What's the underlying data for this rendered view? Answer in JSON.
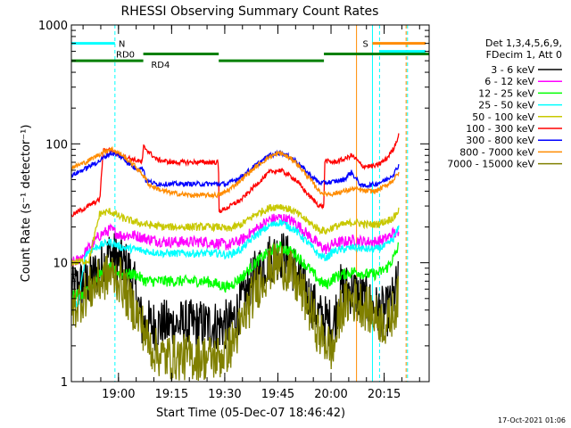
{
  "chart_data": {
    "type": "line",
    "title": "RHESSI Observing Summary Count Rates",
    "xlabel": "Start Time (05-Dec-07 18:46:42)",
    "ylabel": "Count Rate (s⁻¹ detector⁻¹)",
    "yscale": "log",
    "ylim": [
      1,
      1000
    ],
    "xlim_min": [
      0,
      101
    ],
    "y_ticks": [
      "1",
      "10",
      "100",
      "1000"
    ],
    "x_ticks": [
      {
        "label": "19:00",
        "min": 13.3
      },
      {
        "label": "19:15",
        "min": 28.3
      },
      {
        "label": "19:30",
        "min": 43.3
      },
      {
        "label": "19:45",
        "min": 58.3
      },
      {
        "label": "20:00",
        "min": 73.3
      },
      {
        "label": "20:15",
        "min": 88.3
      }
    ],
    "legend_header": [
      "Det 1,3,4,5,6,9,",
      "FDecim 1, Att 0"
    ],
    "footer_date": "17-Oct-2021 01:06",
    "annotations": {
      "N": {
        "label": "N",
        "start_min": 0,
        "end_min": 12.3,
        "y": 700,
        "color": "#00ffff"
      },
      "S": {
        "label": "S",
        "start_min": 85,
        "end_min": 100,
        "y": 700,
        "color": "#ff8c00"
      },
      "S_cyan": {
        "start_min": 87,
        "end_min": 100,
        "y": 600,
        "color": "#00ffff"
      },
      "RD0": {
        "label": "RD0",
        "segments": [
          [
            20.3,
            41.6
          ],
          [
            71.3,
            101
          ]
        ],
        "y": 570,
        "color": "#008000"
      },
      "RD4": {
        "label": "RD4",
        "segments": [
          [
            0,
            20.3
          ],
          [
            41.6,
            71.3
          ]
        ],
        "y": 500,
        "color": "#008000"
      }
    },
    "vlines": [
      {
        "min": 0,
        "color": "#00ffff",
        "dash": false
      },
      {
        "min": 12.3,
        "color": "#00ffff",
        "dash": true
      },
      {
        "min": 80.5,
        "color": "#ff8c00",
        "dash": false
      },
      {
        "min": 85,
        "color": "#00ffff",
        "dash": false
      },
      {
        "min": 87,
        "color": "#00ffff",
        "dash": true
      },
      {
        "min": 94.5,
        "color": "#ff8c00",
        "dash": true
      },
      {
        "min": 94.9,
        "color": "#00ffff",
        "dash": true
      }
    ],
    "series": [
      {
        "name": "3 - 6 keV",
        "color": "#000000",
        "noise": 0.55,
        "clip": 1.0,
        "points": [
          [
            0,
            6
          ],
          [
            5,
            7
          ],
          [
            8,
            9
          ],
          [
            11,
            12
          ],
          [
            14,
            10
          ],
          [
            16,
            9
          ],
          [
            18,
            6
          ],
          [
            20,
            3
          ],
          [
            24,
            3
          ],
          [
            28,
            3
          ],
          [
            34,
            3
          ],
          [
            38,
            3
          ],
          [
            42,
            3
          ],
          [
            45,
            3
          ],
          [
            48,
            4.5
          ],
          [
            52,
            8
          ],
          [
            56,
            11
          ],
          [
            59,
            12
          ],
          [
            62,
            10
          ],
          [
            66,
            6
          ],
          [
            70,
            3.5
          ],
          [
            74,
            3
          ],
          [
            76,
            6
          ],
          [
            79,
            6
          ],
          [
            82,
            5
          ],
          [
            86,
            4
          ],
          [
            89,
            3.8
          ],
          [
            91,
            5
          ],
          [
            92.3,
            7
          ]
        ]
      },
      {
        "name": "6 - 12 keV",
        "color": "#ff00ff",
        "noise": 0.12,
        "clip": 1.0,
        "points": [
          [
            0,
            10
          ],
          [
            2,
            10.5
          ],
          [
            8,
            17
          ],
          [
            11,
            19
          ],
          [
            14,
            17
          ],
          [
            18,
            17
          ],
          [
            21,
            16
          ],
          [
            26,
            15
          ],
          [
            32,
            15
          ],
          [
            38,
            15
          ],
          [
            42,
            14.5
          ],
          [
            44,
            14
          ],
          [
            48,
            15.5
          ],
          [
            52,
            19
          ],
          [
            56,
            23
          ],
          [
            59,
            24
          ],
          [
            63,
            22
          ],
          [
            67,
            17
          ],
          [
            70,
            14
          ],
          [
            72,
            13
          ],
          [
            74,
            14.5
          ],
          [
            77,
            15
          ],
          [
            80,
            15.5
          ],
          [
            83,
            15
          ],
          [
            86,
            15
          ],
          [
            89,
            16
          ],
          [
            91,
            18
          ],
          [
            92.5,
            17
          ]
        ]
      },
      {
        "name": "12 - 25 keV",
        "color": "#00ff00",
        "noise": 0.12,
        "clip": 1.0,
        "points": [
          [
            0,
            5.5
          ],
          [
            4,
            5.5
          ],
          [
            8,
            8
          ],
          [
            11,
            9
          ],
          [
            14,
            8
          ],
          [
            18,
            8
          ],
          [
            21,
            7
          ],
          [
            26,
            7
          ],
          [
            32,
            7
          ],
          [
            38,
            7
          ],
          [
            42,
            6.5
          ],
          [
            44,
            6.2
          ],
          [
            48,
            7.5
          ],
          [
            52,
            10
          ],
          [
            56,
            12.5
          ],
          [
            59,
            13.5
          ],
          [
            63,
            12
          ],
          [
            67,
            9
          ],
          [
            70,
            7
          ],
          [
            72,
            6.5
          ],
          [
            74,
            7.5
          ],
          [
            77,
            8
          ],
          [
            80,
            8.5
          ],
          [
            83,
            8
          ],
          [
            86,
            8
          ],
          [
            89,
            9
          ],
          [
            91,
            11
          ],
          [
            92.5,
            14
          ]
        ]
      },
      {
        "name": "25 - 50 keV",
        "color": "#00ffff",
        "noise": 0.08,
        "clip": 1.0,
        "points": [
          [
            0,
            4.5
          ],
          [
            2,
            4.5
          ],
          [
            4,
            12
          ],
          [
            8,
            14
          ],
          [
            11,
            15
          ],
          [
            14,
            13.5
          ],
          [
            18,
            13
          ],
          [
            21,
            12.5
          ],
          [
            26,
            12
          ],
          [
            32,
            12
          ],
          [
            38,
            12
          ],
          [
            42,
            12
          ],
          [
            44,
            11.5
          ],
          [
            48,
            13
          ],
          [
            52,
            17
          ],
          [
            56,
            20.5
          ],
          [
            59,
            22
          ],
          [
            63,
            19
          ],
          [
            67,
            14.5
          ],
          [
            70,
            11.5
          ],
          [
            72,
            11
          ],
          [
            74,
            12.5
          ],
          [
            77,
            13
          ],
          [
            80,
            13.5
          ],
          [
            83,
            13
          ],
          [
            86,
            13
          ],
          [
            89,
            14
          ],
          [
            91,
            16
          ],
          [
            92.5,
            20
          ]
        ]
      },
      {
        "name": "50 - 100 keV",
        "color": "#c8c800",
        "noise": 0.08,
        "clip": 1.0,
        "points": [
          [
            0,
            10
          ],
          [
            5,
            10.5
          ],
          [
            8,
            26
          ],
          [
            11,
            27
          ],
          [
            14,
            24
          ],
          [
            18,
            22
          ],
          [
            21,
            21
          ],
          [
            26,
            20
          ],
          [
            32,
            20
          ],
          [
            38,
            20
          ],
          [
            42,
            20
          ],
          [
            44,
            19
          ],
          [
            48,
            21
          ],
          [
            52,
            25.5
          ],
          [
            56,
            29
          ],
          [
            59,
            30
          ],
          [
            63,
            27
          ],
          [
            67,
            22
          ],
          [
            70,
            19
          ],
          [
            72,
            18.5
          ],
          [
            74,
            20
          ],
          [
            77,
            21
          ],
          [
            80,
            22
          ],
          [
            83,
            21
          ],
          [
            86,
            21
          ],
          [
            89,
            22.5
          ],
          [
            91,
            24
          ],
          [
            92.5,
            28
          ]
        ]
      },
      {
        "name": "100 - 300 keV",
        "color": "#ff0000",
        "noise": 0.05,
        "clip": 1.0,
        "points": [
          [
            0,
            25
          ],
          [
            4,
            29
          ],
          [
            8,
            34
          ],
          [
            9,
            88
          ],
          [
            11,
            89
          ],
          [
            14,
            80
          ],
          [
            18,
            73
          ],
          [
            20,
            70
          ],
          [
            20.4,
            95
          ],
          [
            24,
            74
          ],
          [
            28,
            70
          ],
          [
            34,
            70
          ],
          [
            38,
            70
          ],
          [
            41.5,
            70
          ],
          [
            41.7,
            27
          ],
          [
            44,
            29
          ],
          [
            48,
            34
          ],
          [
            52,
            45
          ],
          [
            56,
            58
          ],
          [
            59,
            60
          ],
          [
            63,
            51
          ],
          [
            67,
            37
          ],
          [
            70,
            30
          ],
          [
            71.3,
            30
          ],
          [
            71.5,
            72
          ],
          [
            74,
            70
          ],
          [
            77,
            74
          ],
          [
            79,
            80
          ],
          [
            80.5,
            74
          ],
          [
            82,
            65
          ],
          [
            86,
            65
          ],
          [
            89,
            75
          ],
          [
            91,
            92
          ],
          [
            92.5,
            120
          ]
        ]
      },
      {
        "name": "300 - 800 keV",
        "color": "#0000ff",
        "noise": 0.05,
        "clip": 1.0,
        "points": [
          [
            0,
            54
          ],
          [
            4,
            62
          ],
          [
            8,
            72
          ],
          [
            11,
            84
          ],
          [
            14,
            78
          ],
          [
            18,
            62
          ],
          [
            20.4,
            62
          ],
          [
            21,
            49
          ],
          [
            24,
            46
          ],
          [
            28,
            46
          ],
          [
            34,
            46
          ],
          [
            38,
            46
          ],
          [
            41.6,
            46
          ],
          [
            44,
            46
          ],
          [
            48,
            53
          ],
          [
            52,
            66
          ],
          [
            56,
            80
          ],
          [
            59,
            85
          ],
          [
            63,
            74
          ],
          [
            67,
            56
          ],
          [
            70,
            47
          ],
          [
            71.3,
            47
          ],
          [
            74,
            48
          ],
          [
            77,
            50
          ],
          [
            79,
            58
          ],
          [
            80.5,
            50
          ],
          [
            82,
            44
          ],
          [
            86,
            46
          ],
          [
            89,
            50
          ],
          [
            91,
            56
          ],
          [
            92.5,
            67
          ]
        ]
      },
      {
        "name": "800 - 7000 keV",
        "color": "#ff8c00",
        "noise": 0.05,
        "clip": 1.0,
        "points": [
          [
            0,
            63
          ],
          [
            4,
            70
          ],
          [
            8,
            82
          ],
          [
            11,
            91
          ],
          [
            14,
            82
          ],
          [
            18,
            65
          ],
          [
            20.4,
            54
          ],
          [
            22,
            45
          ],
          [
            26,
            40
          ],
          [
            30,
            38
          ],
          [
            34,
            37
          ],
          [
            38,
            37
          ],
          [
            41.6,
            37
          ],
          [
            44,
            40
          ],
          [
            48,
            50
          ],
          [
            52,
            64
          ],
          [
            56,
            78
          ],
          [
            59,
            84
          ],
          [
            63,
            72
          ],
          [
            67,
            52
          ],
          [
            70,
            40
          ],
          [
            71.3,
            38
          ],
          [
            74,
            38
          ],
          [
            77,
            40
          ],
          [
            80,
            42
          ],
          [
            83,
            40
          ],
          [
            86,
            40
          ],
          [
            89,
            45
          ],
          [
            91,
            50
          ],
          [
            92.5,
            58
          ]
        ]
      },
      {
        "name": "7000 - 15000 keV",
        "color": "#808000",
        "noise": 0.5,
        "clip": 1.0,
        "points": [
          [
            0,
            4
          ],
          [
            4,
            5.5
          ],
          [
            8,
            7
          ],
          [
            11,
            8
          ],
          [
            14,
            7
          ],
          [
            16,
            5
          ],
          [
            18,
            4
          ],
          [
            20,
            3
          ],
          [
            22,
            2
          ],
          [
            26,
            1.6
          ],
          [
            30,
            1.6
          ],
          [
            34,
            1.6
          ],
          [
            38,
            1.6
          ],
          [
            42,
            1.6
          ],
          [
            45,
            2
          ],
          [
            48,
            3
          ],
          [
            52,
            6
          ],
          [
            56,
            9
          ],
          [
            59,
            10
          ],
          [
            62,
            8
          ],
          [
            66,
            5
          ],
          [
            70,
            2.5
          ],
          [
            74,
            1.8
          ],
          [
            76,
            4
          ],
          [
            79,
            5
          ],
          [
            82,
            4.5
          ],
          [
            86,
            3.5
          ],
          [
            89,
            3
          ],
          [
            91,
            4
          ],
          [
            92.3,
            5
          ]
        ]
      }
    ]
  }
}
